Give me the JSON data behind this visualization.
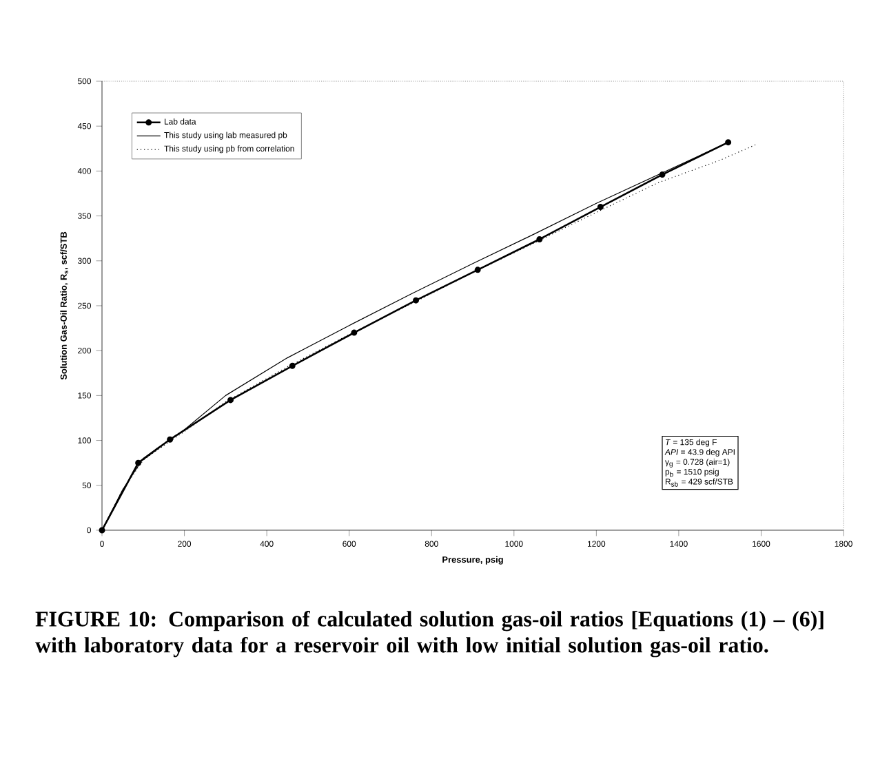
{
  "chart_data": {
    "type": "line",
    "xlabel": "Pressure, psig",
    "ylabel": "Solution Gas-Oil Ratio, R$_{s}$, scf/STB",
    "xlim": [
      0,
      1800
    ],
    "xticks": [
      0,
      200,
      400,
      600,
      800,
      1000,
      1200,
      1400,
      1600,
      1800
    ],
    "ylim": [
      0,
      500
    ],
    "yticks": [
      0,
      50,
      100,
      150,
      200,
      250,
      300,
      350,
      400,
      450,
      500
    ],
    "legend": "top left",
    "series": [
      {
        "name": "Lab data",
        "color": "#000000",
        "marker": "circle",
        "line_style": "solid",
        "x": [
          0,
          88,
          165,
          312,
          462,
          612,
          762,
          912,
          1062,
          1210,
          1360,
          1520
        ],
        "values": [
          0,
          75,
          101,
          145,
          183,
          220,
          256,
          290,
          324,
          360,
          396,
          432
        ]
      },
      {
        "name": "This study using lab measured pb",
        "color": "#000000",
        "marker": "none",
        "line_style": "solid",
        "x": [
          0,
          50,
          100,
          130,
          200,
          300,
          450,
          600,
          750,
          900,
          1050,
          1200,
          1360,
          1520
        ],
        "values": [
          0,
          45,
          80,
          90,
          112,
          150,
          192,
          228,
          263,
          297,
          330,
          364,
          398,
          432
        ]
      },
      {
        "name": "This study using pb from correlation",
        "color": "#000000",
        "marker": "none",
        "line_style": "dotted",
        "x": [
          0,
          50,
          100,
          130,
          200,
          300,
          450,
          600,
          750,
          900,
          1050,
          1200,
          1350,
          1500,
          1590
        ],
        "values": [
          0,
          45,
          78,
          88,
          110,
          143,
          182,
          218,
          252,
          287,
          320,
          354,
          387,
          412,
          430
        ]
      }
    ],
    "annotations": [
      "*T* = 135 deg F",
      "*API* = 43.9 deg API",
      "γ$_{g}$ = 0.728 (air=1)",
      "p$_{b}$ = 1510 psig",
      "R$_{sb}$ = 429 scf/STB",
      "FIGURE 10: Comparison of calculated solution gas-oil ratios [Equations (1) – (6)] with laboratory data for a reservoir oil with low initial solution gas-oil ratio."
    ]
  }
}
